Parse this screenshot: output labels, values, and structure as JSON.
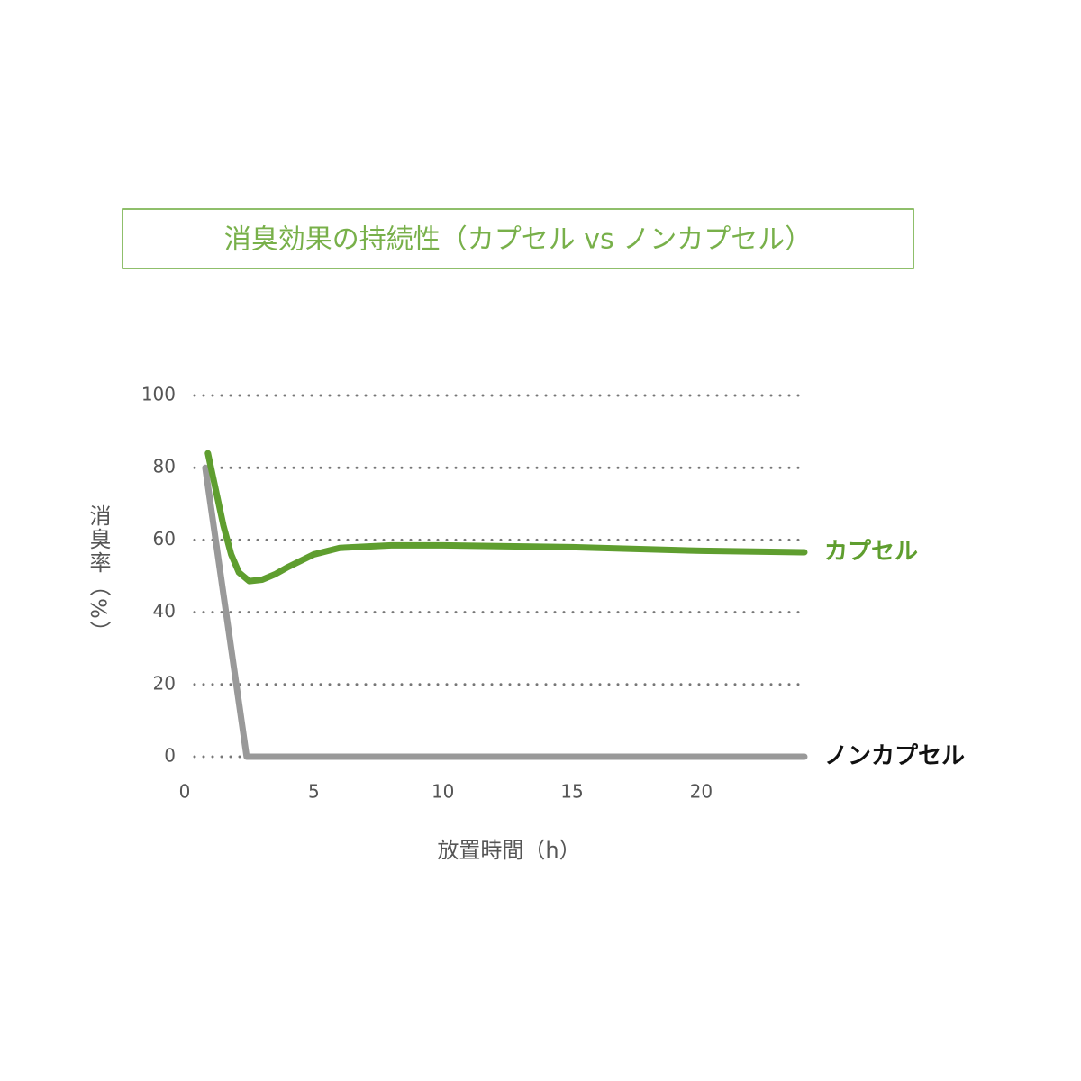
{
  "chart_data": {
    "type": "line",
    "title": "消臭効果の持続性（カプセル vs ノンカプセル）",
    "x_label": "放置時間（h）",
    "y_label": "消臭率（%）",
    "xlim": [
      0,
      24
    ],
    "ylim": [
      0,
      100
    ],
    "xticks": [
      0,
      5,
      10,
      15,
      20
    ],
    "yticks": [
      0,
      20,
      40,
      60,
      80,
      100
    ],
    "grid": true,
    "series": [
      {
        "name": "カプセル",
        "color": "#5f9e2f",
        "x": [
          0.9,
          1.2,
          1.5,
          1.8,
          2.1,
          2.5,
          3,
          3.5,
          4,
          5,
          6,
          8,
          10,
          15,
          20,
          24
        ],
        "values": [
          84,
          74,
          64,
          56,
          51,
          48.6,
          49,
          50.5,
          52.5,
          56,
          57.8,
          58.5,
          58.5,
          58,
          57,
          56.6
        ]
      },
      {
        "name": "ノンカプセル",
        "color": "#999999",
        "x": [
          0.8,
          2.4,
          24
        ],
        "values": [
          80,
          0,
          0
        ]
      }
    ]
  }
}
